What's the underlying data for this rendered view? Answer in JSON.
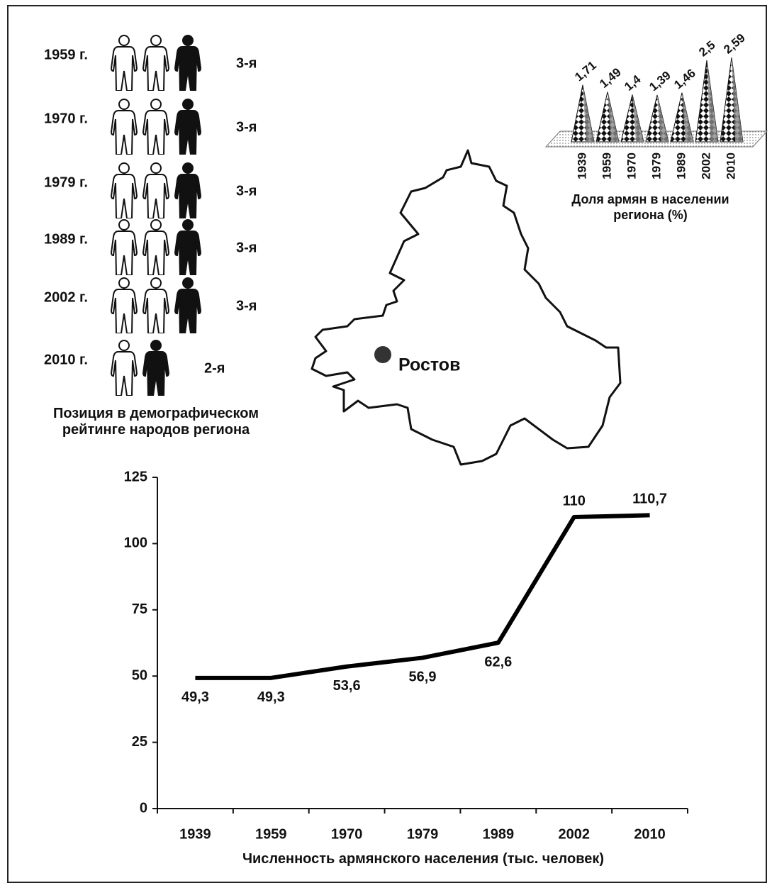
{
  "chart_data": [
    {
      "type": "pictogram",
      "title": "Позиция  в демографическом рейтинге народов региона",
      "rows": [
        {
          "label": "1959 г.",
          "rank": "3-я"
        },
        {
          "label": "1970 г.",
          "rank": "3-я"
        },
        {
          "label": "1979 г.",
          "rank": "3-я"
        },
        {
          "label": "1989 г.",
          "rank": "3-я"
        },
        {
          "label": "2002 г.",
          "rank": "3-я"
        },
        {
          "label": "2010 г.",
          "rank": "2-я"
        }
      ]
    },
    {
      "type": "cone",
      "title": "Доля армян в населении региона (%)",
      "categories": [
        "1939",
        "1959",
        "1970",
        "1979",
        "1989",
        "2002",
        "2010"
      ],
      "values": [
        1.71,
        1.49,
        1.4,
        1.39,
        1.46,
        2.5,
        2.59
      ],
      "value_labels": [
        "1,71",
        "1,49",
        "1,4",
        "1,39",
        "1,46",
        "2,5",
        "2,59"
      ]
    },
    {
      "type": "line",
      "x_label": "Численность армянского населения (тыс. человек)",
      "categories": [
        "1939",
        "1959",
        "1970",
        "1979",
        "1989",
        "2002",
        "2010"
      ],
      "values": [
        49.3,
        49.3,
        53.6,
        56.9,
        62.6,
        110,
        110.7
      ],
      "value_labels": [
        "49,3",
        "49,3",
        "53,6",
        "56,9",
        "62,6",
        "110",
        "110,7"
      ],
      "color": "#000000",
      "ylim": [
        0,
        125
      ],
      "yticks": [
        0,
        25,
        50,
        75,
        100,
        125
      ]
    }
  ],
  "map": {
    "label": "Ростов"
  }
}
